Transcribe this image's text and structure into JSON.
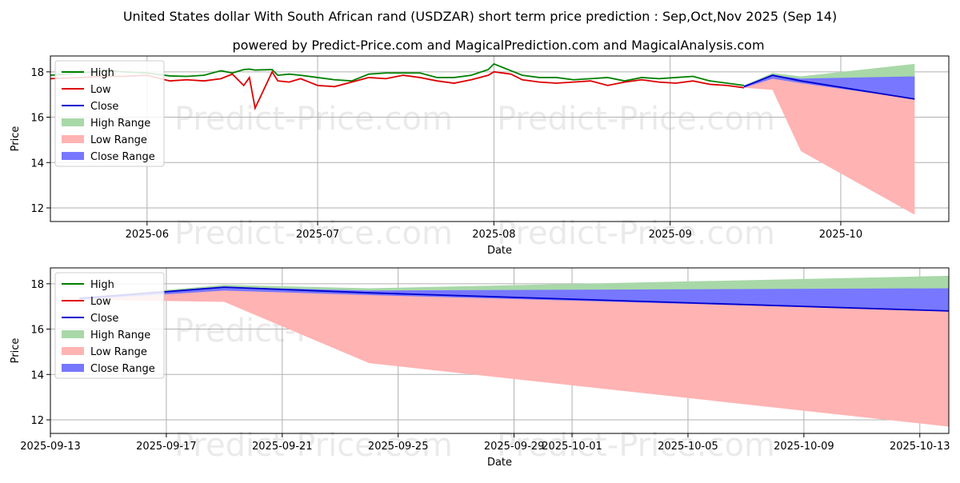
{
  "title_line1": "United States dollar With South African rand (USDZAR) short term price prediction : Sep,Oct,Nov 2025 (Sep 14)",
  "title_line2": "powered by Predict-Price.com and MagicalPrediction.com and MagicalAnalysis.com",
  "watermark": "Predict-Price.com",
  "colors": {
    "high": "#008000",
    "low": "#dd0000",
    "close": "#0000cc",
    "high_range": "#a8d8a8",
    "low_range": "#ffb3b3",
    "close_range": "#7777ff"
  },
  "chart_data": [
    {
      "type": "line",
      "xlabel": "Date",
      "ylabel": "Price",
      "grid": true,
      "legend_placement": "top-left",
      "legend": [
        "High",
        "Low",
        "Close",
        "High Range",
        "Low Range",
        "Close Range"
      ],
      "ylim": [
        11.4,
        18.7
      ],
      "xlim": [
        "2025-05-15",
        "2025-10-20"
      ],
      "x_ticks": [
        "2025-06",
        "2025-07",
        "2025-08",
        "2025-09",
        "2025-10"
      ],
      "y_ticks": [
        12,
        14,
        16,
        18
      ],
      "history": {
        "dates": [
          "2025-05-15",
          "2025-05-20",
          "2025-05-25",
          "2025-05-28",
          "2025-06-01",
          "2025-06-05",
          "2025-06-08",
          "2025-06-11",
          "2025-06-14",
          "2025-06-16",
          "2025-06-18",
          "2025-06-19",
          "2025-06-20",
          "2025-06-23",
          "2025-06-24",
          "2025-06-26",
          "2025-06-28",
          "2025-07-01",
          "2025-07-04",
          "2025-07-07",
          "2025-07-10",
          "2025-07-13",
          "2025-07-16",
          "2025-07-19",
          "2025-07-22",
          "2025-07-25",
          "2025-07-28",
          "2025-07-31",
          "2025-08-01",
          "2025-08-04",
          "2025-08-06",
          "2025-08-09",
          "2025-08-12",
          "2025-08-15",
          "2025-08-18",
          "2025-08-21",
          "2025-08-24",
          "2025-08-27",
          "2025-08-30",
          "2025-09-02",
          "2025-09-05",
          "2025-09-08",
          "2025-09-11",
          "2025-09-14"
        ],
        "high": [
          17.85,
          17.95,
          18.05,
          18.0,
          17.95,
          17.82,
          17.8,
          17.85,
          18.05,
          17.95,
          18.1,
          18.12,
          18.08,
          18.1,
          17.85,
          17.9,
          17.85,
          17.75,
          17.65,
          17.6,
          17.9,
          17.95,
          17.95,
          17.95,
          17.75,
          17.75,
          17.85,
          18.1,
          18.35,
          18.05,
          17.85,
          17.75,
          17.75,
          17.65,
          17.7,
          17.75,
          17.6,
          17.75,
          17.7,
          17.75,
          17.8,
          17.6,
          17.5,
          17.4
        ],
        "low": [
          17.7,
          17.75,
          17.8,
          17.8,
          17.85,
          17.6,
          17.65,
          17.6,
          17.7,
          17.9,
          17.4,
          17.75,
          16.4,
          18.0,
          17.6,
          17.55,
          17.7,
          17.4,
          17.35,
          17.55,
          17.75,
          17.7,
          17.85,
          17.75,
          17.6,
          17.5,
          17.65,
          17.85,
          18.0,
          17.9,
          17.65,
          17.55,
          17.5,
          17.55,
          17.6,
          17.4,
          17.55,
          17.65,
          17.55,
          17.5,
          17.6,
          17.45,
          17.4,
          17.3
        ]
      },
      "forecast": {
        "dates": [
          "2025-09-14",
          "2025-09-19",
          "2025-09-24",
          "2025-10-14"
        ],
        "close": [
          17.35,
          17.85,
          17.6,
          16.8
        ],
        "high_range_upper": [
          17.4,
          17.95,
          17.8,
          18.35
        ],
        "low_range_lower": [
          17.3,
          17.2,
          14.5,
          11.7
        ],
        "close_range_upper": [
          17.4,
          17.85,
          17.7,
          17.8
        ],
        "close_range_lower": [
          17.3,
          17.7,
          17.5,
          16.8
        ]
      }
    },
    {
      "type": "line",
      "xlabel": "Date",
      "ylabel": "Price",
      "grid": true,
      "legend_placement": "top-left",
      "legend": [
        "High",
        "Low",
        "Close",
        "High Range",
        "Low Range",
        "Close Range"
      ],
      "ylim": [
        11.4,
        18.7
      ],
      "xlim": [
        "2025-09-13",
        "2025-10-14"
      ],
      "x_ticks": [
        "2025-09-13",
        "2025-09-17",
        "2025-09-21",
        "2025-09-25",
        "2025-09-29",
        "2025-10-01",
        "2025-10-05",
        "2025-10-09",
        "2025-10-13"
      ],
      "y_ticks": [
        12,
        14,
        16,
        18
      ],
      "forecast": {
        "dates": [
          "2025-09-14",
          "2025-09-19",
          "2025-09-24",
          "2025-10-14"
        ],
        "close": [
          17.35,
          17.85,
          17.6,
          16.8
        ],
        "high_range_upper": [
          17.4,
          17.95,
          17.8,
          18.35
        ],
        "low_range_lower": [
          17.3,
          17.2,
          14.5,
          11.7
        ],
        "close_range_upper": [
          17.4,
          17.85,
          17.7,
          17.8
        ],
        "close_range_lower": [
          17.3,
          17.7,
          17.5,
          16.8
        ]
      }
    }
  ]
}
